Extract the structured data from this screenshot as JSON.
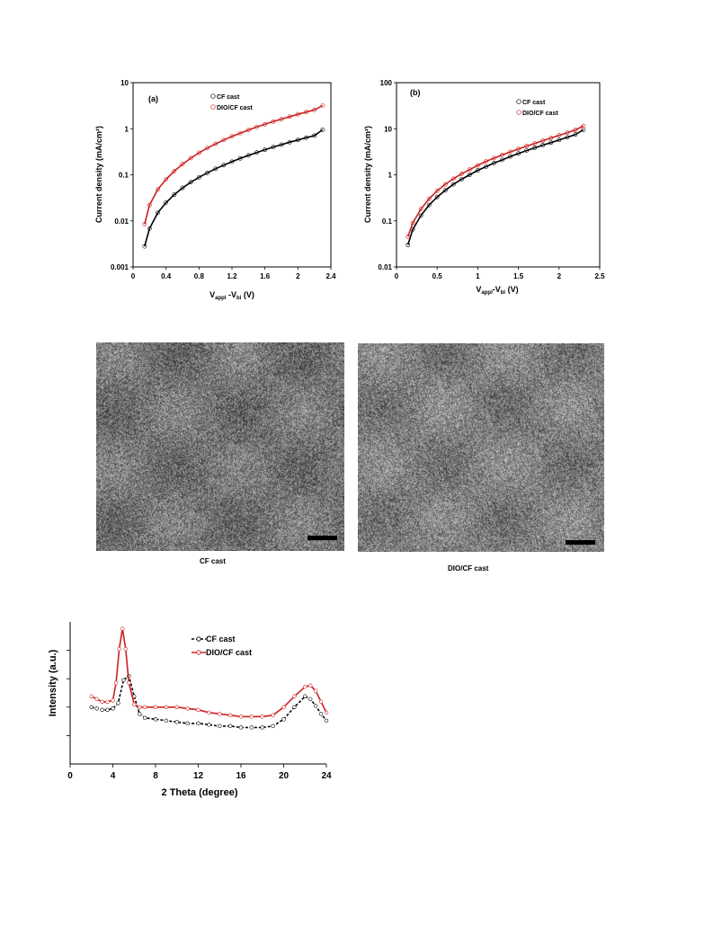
{
  "colors": {
    "cf": "#000000",
    "dio": "#cc1f1f"
  },
  "jv": {
    "a": {
      "panel_label": "(a)",
      "ylabel": "Current density (mA/cm²)",
      "xlabel_main": "V",
      "xlabel_sub1": "appl",
      "xlabel_mid": " -V",
      "xlabel_sub2": "bi",
      "xlabel_end": " (V)",
      "legend": [
        "CF cast",
        "DIO/CF cast"
      ]
    },
    "b": {
      "panel_label": "(b)",
      "ylabel": "Current density (mA/cm²)",
      "xlabel_main": "V",
      "xlabel_sub1": "appl",
      "xlabel_mid": "-V",
      "xlabel_sub2": "bi",
      "xlabel_end": " (V)",
      "legend": [
        "CF cast",
        "DIO/CF cast"
      ]
    }
  },
  "tem": {
    "left_caption": "CF cast",
    "right_caption": "DIO/CF cast"
  },
  "xrd": {
    "ylabel": "Intensity (a.u.)",
    "xlabel": "2 Theta (degree)",
    "legend": [
      "CF cast",
      "DIO/CF cast"
    ]
  },
  "chart_data": [
    {
      "type": "scatter",
      "panel": "(a)",
      "xlabel": "Vappl -Vbi (V)",
      "ylabel": "Current density (mA/cm²)",
      "xlim": [
        0,
        2.4
      ],
      "ylim": [
        0.001,
        10
      ],
      "yscale": "log",
      "xticks": [
        "0",
        "0.4",
        "0.8",
        "1.2",
        "1.6",
        "2",
        "2.4"
      ],
      "yticks": [
        "0.001",
        "0.01",
        "0.1",
        "1",
        "10"
      ],
      "legend_position": "top-center",
      "series": [
        {
          "name": "CF cast",
          "x": [
            0.14,
            0.2,
            0.3,
            0.4,
            0.5,
            0.6,
            0.7,
            0.8,
            0.9,
            1.0,
            1.1,
            1.2,
            1.3,
            1.4,
            1.5,
            1.6,
            1.7,
            1.8,
            1.9,
            2.0,
            2.1,
            2.2,
            2.3
          ],
          "y": [
            0.0028,
            0.0068,
            0.015,
            0.025,
            0.037,
            0.052,
            0.069,
            0.088,
            0.11,
            0.135,
            0.162,
            0.193,
            0.227,
            0.264,
            0.305,
            0.35,
            0.4,
            0.45,
            0.51,
            0.57,
            0.64,
            0.71,
            0.95
          ]
        },
        {
          "name": "DIO/CF cast",
          "x": [
            0.14,
            0.2,
            0.3,
            0.4,
            0.5,
            0.6,
            0.7,
            0.8,
            0.9,
            1.0,
            1.1,
            1.2,
            1.3,
            1.4,
            1.5,
            1.6,
            1.7,
            1.8,
            1.9,
            2.0,
            2.1,
            2.2,
            2.3
          ],
          "y": [
            0.0085,
            0.022,
            0.048,
            0.08,
            0.12,
            0.17,
            0.23,
            0.3,
            0.38,
            0.47,
            0.57,
            0.68,
            0.8,
            0.94,
            1.09,
            1.25,
            1.43,
            1.62,
            1.83,
            2.06,
            2.3,
            2.56,
            3.2
          ]
        }
      ]
    },
    {
      "type": "scatter",
      "panel": "(b)",
      "xlabel": "Vappl-Vbi (V)",
      "ylabel": "Current density (mA/cm²)",
      "xlim": [
        0,
        2.5
      ],
      "ylim": [
        0.01,
        100
      ],
      "yscale": "log",
      "xticks": [
        "0",
        "0.5",
        "1",
        "1.5",
        "2",
        "2.5"
      ],
      "yticks": [
        "0.01",
        "0.1",
        "1",
        "10",
        "100"
      ],
      "legend_position": "top-center",
      "series": [
        {
          "name": "CF cast",
          "x": [
            0.14,
            0.2,
            0.3,
            0.4,
            0.5,
            0.6,
            0.7,
            0.8,
            0.9,
            1.0,
            1.1,
            1.2,
            1.3,
            1.4,
            1.5,
            1.6,
            1.7,
            1.8,
            1.9,
            2.0,
            2.1,
            2.2,
            2.3
          ],
          "y": [
            0.03,
            0.065,
            0.13,
            0.22,
            0.33,
            0.46,
            0.62,
            0.8,
            1.0,
            1.25,
            1.5,
            1.8,
            2.1,
            2.5,
            2.9,
            3.35,
            3.85,
            4.4,
            5.0,
            5.7,
            6.5,
            7.5,
            9.5
          ]
        },
        {
          "name": "DIO/CF cast",
          "x": [
            0.14,
            0.2,
            0.3,
            0.4,
            0.5,
            0.6,
            0.7,
            0.8,
            0.9,
            1.0,
            1.1,
            1.2,
            1.3,
            1.4,
            1.5,
            1.6,
            1.7,
            1.8,
            1.9,
            2.0,
            2.1,
            2.2,
            2.3
          ],
          "y": [
            0.045,
            0.09,
            0.18,
            0.3,
            0.45,
            0.62,
            0.82,
            1.05,
            1.3,
            1.6,
            1.95,
            2.3,
            2.7,
            3.15,
            3.65,
            4.2,
            4.8,
            5.5,
            6.3,
            7.2,
            8.2,
            9.4,
            11.5
          ]
        }
      ]
    },
    {
      "type": "line",
      "xlabel": "2 Theta (degree)",
      "ylabel": "Intensity (a.u.)",
      "xlim": [
        0,
        24
      ],
      "xticks": [
        "0",
        "4",
        "8",
        "12",
        "16",
        "20",
        "24"
      ],
      "legend_position": "top-center",
      "series": [
        {
          "name": "CF cast",
          "x": [
            2,
            2.5,
            3,
            3.5,
            4,
            4.5,
            5,
            5.5,
            6,
            6.5,
            7,
            8,
            9,
            10,
            11,
            12,
            13,
            14,
            15,
            16,
            17,
            18,
            19,
            20,
            21,
            22,
            22.5,
            23,
            23.5,
            24
          ],
          "y": [
            0.42,
            0.41,
            0.4,
            0.4,
            0.41,
            0.45,
            0.62,
            0.65,
            0.5,
            0.37,
            0.34,
            0.33,
            0.32,
            0.31,
            0.3,
            0.3,
            0.29,
            0.28,
            0.28,
            0.27,
            0.27,
            0.27,
            0.28,
            0.33,
            0.42,
            0.5,
            0.48,
            0.43,
            0.37,
            0.32
          ]
        },
        {
          "name": "DIO/CF cast",
          "x": [
            2,
            2.5,
            3,
            3.5,
            4,
            4.3,
            4.6,
            4.9,
            5.2,
            5.5,
            6,
            6.5,
            7,
            8,
            9,
            10,
            11,
            12,
            13,
            14,
            15,
            16,
            17,
            18,
            19,
            20,
            21,
            22,
            22.5,
            23,
            23.5,
            24
          ],
          "y": [
            0.5,
            0.48,
            0.46,
            0.46,
            0.47,
            0.6,
            0.85,
            1.0,
            0.85,
            0.6,
            0.44,
            0.42,
            0.42,
            0.42,
            0.42,
            0.42,
            0.41,
            0.4,
            0.38,
            0.37,
            0.36,
            0.35,
            0.35,
            0.35,
            0.36,
            0.42,
            0.5,
            0.57,
            0.58,
            0.54,
            0.46,
            0.38
          ]
        }
      ]
    }
  ]
}
